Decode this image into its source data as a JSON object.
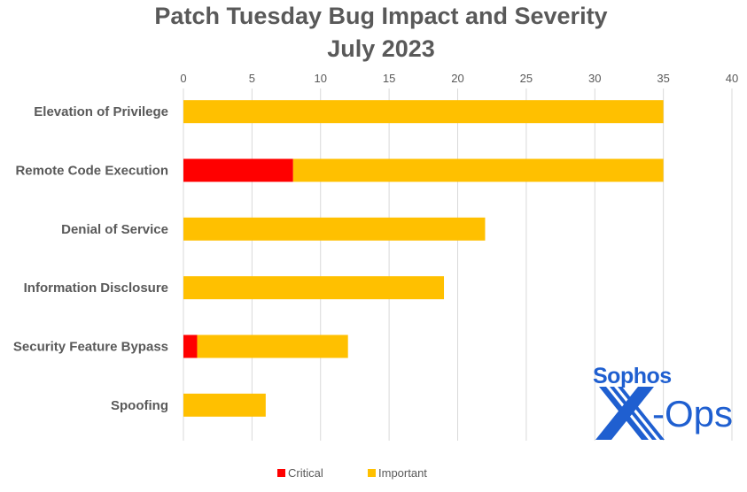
{
  "chart_data": {
    "type": "bar",
    "orientation": "horizontal",
    "stacked": true,
    "title": [
      "Patch Tuesday Bug Impact and Severity",
      "July 2023"
    ],
    "categories": [
      "Elevation of Privilege",
      "Remote Code Execution",
      "Denial of Service",
      "Information Disclosure",
      "Security Feature Bypass",
      "Spoofing"
    ],
    "series": [
      {
        "name": "Critical",
        "color": "#FF0000",
        "values": [
          0,
          8,
          0,
          0,
          1,
          0
        ]
      },
      {
        "name": "Important",
        "color": "#FFC000",
        "values": [
          35,
          27,
          22,
          19,
          11,
          6
        ]
      }
    ],
    "xlim": [
      0,
      40
    ],
    "xticks": [
      0,
      5,
      10,
      15,
      20,
      25,
      30,
      35,
      40
    ],
    "x_axis_position": "top",
    "grid": "vertical",
    "legend": "bottom",
    "watermark": {
      "text": "Sophos X-Ops",
      "color": "#1F5FD0"
    }
  }
}
